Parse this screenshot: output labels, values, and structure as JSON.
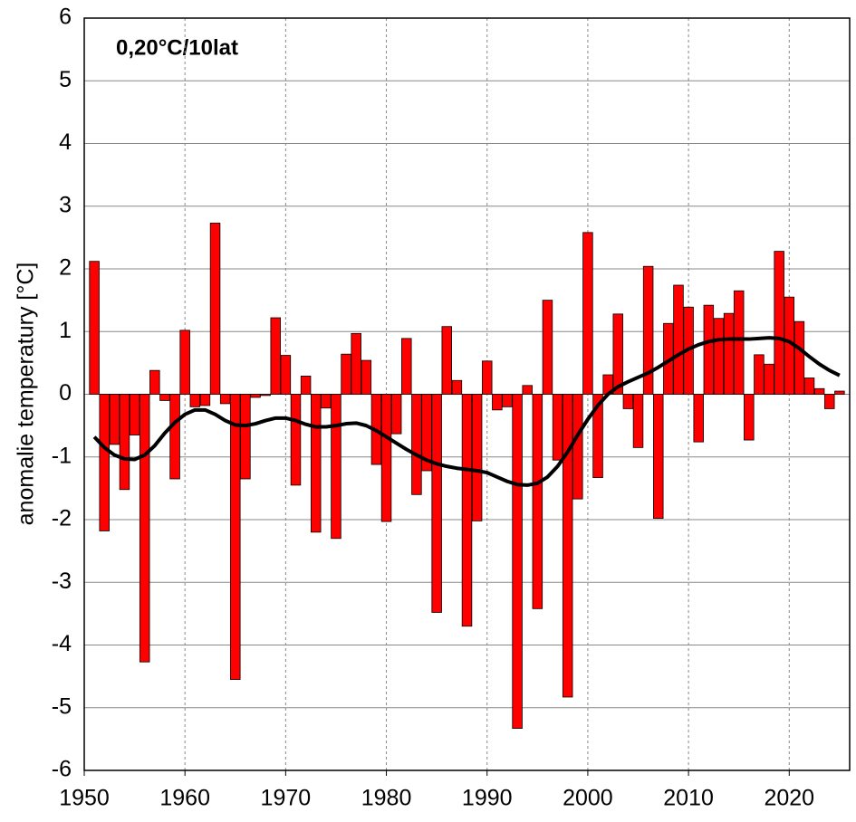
{
  "chart_data": {
    "type": "bar",
    "annotation": "0,20°C/10lat",
    "annotation_color": "#ff0000",
    "ylabel": "anomalie temperatury [°C]",
    "x": [
      1951,
      1952,
      1953,
      1954,
      1955,
      1956,
      1957,
      1958,
      1959,
      1960,
      1961,
      1962,
      1963,
      1964,
      1965,
      1966,
      1967,
      1968,
      1969,
      1970,
      1971,
      1972,
      1973,
      1974,
      1975,
      1976,
      1977,
      1978,
      1979,
      1980,
      1981,
      1982,
      1983,
      1984,
      1985,
      1986,
      1987,
      1988,
      1989,
      1990,
      1991,
      1992,
      1993,
      1994,
      1995,
      1996,
      1997,
      1998,
      1999,
      2000,
      2001,
      2002,
      2003,
      2004,
      2005,
      2006,
      2007,
      2008,
      2009,
      2010,
      2011,
      2012,
      2013,
      2014,
      2015,
      2016,
      2017,
      2018,
      2019,
      2020,
      2021,
      2022,
      2023,
      2024,
      2025
    ],
    "series": [
      {
        "type": "bar",
        "color": "#ff0000",
        "values": [
          2.12,
          -2.18,
          -0.8,
          -1.52,
          -0.65,
          -4.27,
          0.38,
          -0.1,
          -1.35,
          1.02,
          -0.2,
          -0.18,
          2.73,
          -0.15,
          -4.55,
          -1.35,
          -0.05,
          -0.02,
          1.22,
          0.62,
          -1.45,
          0.29,
          -2.2,
          -0.22,
          -2.3,
          0.64,
          0.97,
          0.54,
          -1.12,
          -2.03,
          -0.63,
          0.89,
          -1.6,
          -1.22,
          -3.48,
          1.08,
          0.22,
          -3.7,
          -2.02,
          0.53,
          -0.25,
          -0.2,
          -5.33,
          0.14,
          -3.42,
          1.5,
          -1.05,
          -4.83,
          -1.67,
          2.58,
          -1.33,
          0.31,
          1.28,
          -0.23,
          -0.85,
          2.04,
          -1.98,
          1.13,
          1.74,
          1.39,
          -0.76,
          1.42,
          1.21,
          1.29,
          1.65,
          -0.73,
          0.63,
          0.48,
          2.28,
          1.55,
          1.16,
          0.26,
          0.09,
          -0.23,
          0.05
        ]
      },
      {
        "type": "line",
        "color": "#000000",
        "values": [
          -0.68,
          -0.85,
          -0.97,
          -1.03,
          -1.04,
          -0.97,
          -0.82,
          -0.62,
          -0.45,
          -0.32,
          -0.25,
          -0.25,
          -0.32,
          -0.42,
          -0.49,
          -0.5,
          -0.47,
          -0.42,
          -0.38,
          -0.38,
          -0.42,
          -0.48,
          -0.52,
          -0.52,
          -0.5,
          -0.47,
          -0.46,
          -0.5,
          -0.58,
          -0.68,
          -0.78,
          -0.88,
          -0.97,
          -1.05,
          -1.11,
          -1.15,
          -1.18,
          -1.2,
          -1.22,
          -1.25,
          -1.32,
          -1.39,
          -1.44,
          -1.45,
          -1.42,
          -1.32,
          -1.15,
          -0.92,
          -0.65,
          -0.4,
          -0.18,
          0.0,
          0.12,
          0.2,
          0.27,
          0.34,
          0.43,
          0.53,
          0.63,
          0.72,
          0.79,
          0.84,
          0.87,
          0.88,
          0.88,
          0.88,
          0.89,
          0.9,
          0.89,
          0.84,
          0.73,
          0.6,
          0.48,
          0.38,
          0.3
        ]
      }
    ],
    "xlim": [
      1950,
      2026
    ],
    "xticks": [
      1950,
      1960,
      1970,
      1980,
      1990,
      2000,
      2010,
      2020
    ],
    "ylim": [
      -6,
      6
    ],
    "yticks": [
      -6,
      -5,
      -4,
      -3,
      -2,
      -1,
      0,
      1,
      2,
      3,
      4,
      5,
      6
    ],
    "grid": true
  }
}
